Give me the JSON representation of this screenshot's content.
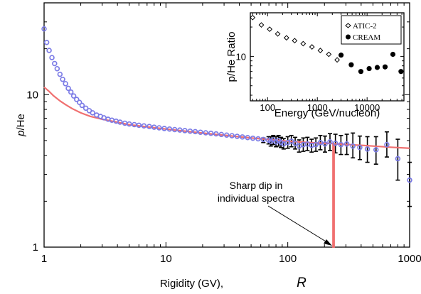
{
  "chart_data": [
    {
      "type": "scatter",
      "title": "",
      "xlabel_main": "Rigidity  (GV),",
      "xlabel_symbol": "R",
      "ylabel": "p/He",
      "xscale": "log",
      "yscale": "log",
      "xlim": [
        1,
        1000
      ],
      "ylim": [
        1,
        40
      ],
      "x_ticks": [
        1,
        10,
        100,
        1000
      ],
      "x_tick_labels": [
        "1",
        "10",
        "100",
        "1000"
      ],
      "y_ticks": [
        1,
        10
      ],
      "y_tick_labels": [
        "1",
        "10"
      ],
      "grid": false,
      "annotation": {
        "lines": [
          "Sharp dip in",
          "individual spectra"
        ],
        "points_to_x": 235,
        "points_to_y": 1.0
      },
      "colors": {
        "points": "#7b7be6",
        "fit": "#f07070",
        "errorbars": "#000000"
      },
      "series": [
        {
          "marker": "open-circle",
          "x": [
            1.0,
            1.05,
            1.1,
            1.16,
            1.22,
            1.28,
            1.35,
            1.42,
            1.5,
            1.58,
            1.66,
            1.75,
            1.85,
            1.95,
            2.05,
            2.2,
            2.35,
            2.5,
            2.7,
            2.9,
            3.1,
            3.35,
            3.6,
            3.9,
            4.2,
            4.6,
            5.0,
            5.5,
            6.0,
            6.6,
            7.3,
            8.0,
            8.8,
            9.7,
            10.7,
            11.8,
            13.0,
            14.3,
            15.8,
            17.4,
            19.2,
            21.2,
            23.4,
            25.8,
            28.5,
            31.5,
            34.8,
            38.4,
            42.4,
            46.8,
            51.7,
            57.1,
            63.0,
            69.6,
            72.5,
            76.0,
            80.0,
            84.0,
            88.0,
            92.5,
            100.0,
            107.0,
            115.0,
            124.0,
            134.0,
            145.0,
            157.0,
            170.0,
            185.0,
            202.0,
            222.0,
            246.0,
            273.0,
            305.0,
            342.0,
            390.0,
            450.0,
            530.0,
            650.0,
            800.0,
            1000.0
          ],
          "y": [
            27.0,
            22.0,
            19.5,
            17.5,
            16.0,
            14.8,
            13.6,
            12.6,
            11.8,
            11.0,
            10.4,
            9.8,
            9.3,
            8.9,
            8.5,
            8.15,
            7.85,
            7.6,
            7.35,
            7.2,
            7.05,
            6.9,
            6.8,
            6.7,
            6.6,
            6.5,
            6.42,
            6.36,
            6.3,
            6.24,
            6.18,
            6.12,
            6.06,
            6.0,
            5.95,
            5.9,
            5.86,
            5.81,
            5.76,
            5.72,
            5.67,
            5.62,
            5.58,
            5.53,
            5.48,
            5.43,
            5.38,
            5.33,
            5.28,
            5.23,
            5.18,
            5.13,
            5.08,
            5.03,
            4.95,
            5.05,
            4.9,
            5.0,
            4.85,
            4.75,
            4.85,
            4.95,
            4.8,
            4.6,
            4.7,
            4.75,
            4.65,
            4.7,
            4.85,
            4.75,
            4.9,
            4.8,
            4.7,
            4.75,
            4.6,
            4.5,
            4.4,
            4.35,
            4.7,
            3.8,
            2.75
          ],
          "errors": {
            "x": [
              63.0,
              69.6,
              72.5,
              76.0,
              80.0,
              84.0,
              88.0,
              92.5,
              100.0,
              107.0,
              115.0,
              124.0,
              134.0,
              145.0,
              157.0,
              170.0,
              185.0,
              202.0,
              222.0,
              246.0,
              273.0,
              305.0,
              342.0,
              390.0,
              450.0,
              530.0,
              650.0,
              800.0,
              1000.0
            ],
            "lo": [
              4.85,
              4.75,
              4.6,
              4.7,
              4.55,
              4.6,
              4.5,
              4.4,
              4.45,
              4.55,
              4.4,
              4.2,
              4.25,
              4.3,
              4.2,
              4.25,
              4.35,
              4.2,
              4.3,
              4.15,
              4.05,
              4.05,
              3.85,
              3.75,
              3.6,
              3.5,
              3.9,
              2.75,
              1.85
            ],
            "hi": [
              5.2,
              5.3,
              5.3,
              5.4,
              5.3,
              5.4,
              5.25,
              5.15,
              5.3,
              5.4,
              5.25,
              5.05,
              5.2,
              5.25,
              5.1,
              5.2,
              5.4,
              5.35,
              5.55,
              5.5,
              5.4,
              5.5,
              5.6,
              5.35,
              5.3,
              5.3,
              5.7,
              5.1,
              3.6
            ]
          }
        },
        {
          "marker": "line",
          "x": [
            1.0,
            1.1,
            1.2,
            1.35,
            1.5,
            1.7,
            2.0,
            2.4,
            3.0,
            4.0,
            5.0,
            7.0,
            10.0,
            20.0,
            50.0,
            100.0,
            150.0,
            200.0,
            235.0,
            235.01,
            240.0,
            240.01,
            300.0,
            500.0,
            700.0,
            1000.0
          ],
          "y": [
            11.2,
            10.5,
            9.8,
            9.1,
            8.6,
            8.1,
            7.6,
            7.2,
            6.9,
            6.6,
            6.35,
            6.15,
            5.95,
            5.6,
            5.2,
            4.95,
            4.85,
            4.8,
            4.78,
            1.0,
            1.0,
            4.76,
            4.72,
            4.6,
            4.52,
            4.45
          ]
        }
      ]
    },
    {
      "type": "scatter",
      "title": "",
      "xlabel": "Energy (GeV/nucleon)",
      "ylabel": "p/He Ratio",
      "xscale": "log",
      "yscale": "log",
      "xlim": [
        45,
        55000
      ],
      "ylim": [
        3.5,
        28
      ],
      "x_ticks": [
        100,
        1000,
        10000
      ],
      "x_tick_labels": [
        "100",
        "1000",
        "10000"
      ],
      "y_ticks": [
        10
      ],
      "y_tick_labels": [
        "10"
      ],
      "legend_position": "top-right",
      "series": [
        {
          "name": "ATIC-2",
          "marker": "open-diamond",
          "x": [
            50,
            75,
            110,
            160,
            240,
            350,
            520,
            780,
            1150,
            1700,
            2500
          ],
          "y": [
            25.0,
            21.0,
            19.0,
            17.0,
            15.5,
            14.5,
            13.5,
            12.5,
            11.5,
            10.5,
            9.2
          ]
        },
        {
          "name": "CREAM",
          "marker": "filled-circle",
          "x": [
            3000,
            4800,
            7500,
            11000,
            16000,
            23000,
            33000,
            48000
          ],
          "y": [
            10.3,
            8.2,
            7.0,
            7.5,
            7.7,
            7.8,
            10.5,
            7.0
          ]
        }
      ]
    }
  ]
}
